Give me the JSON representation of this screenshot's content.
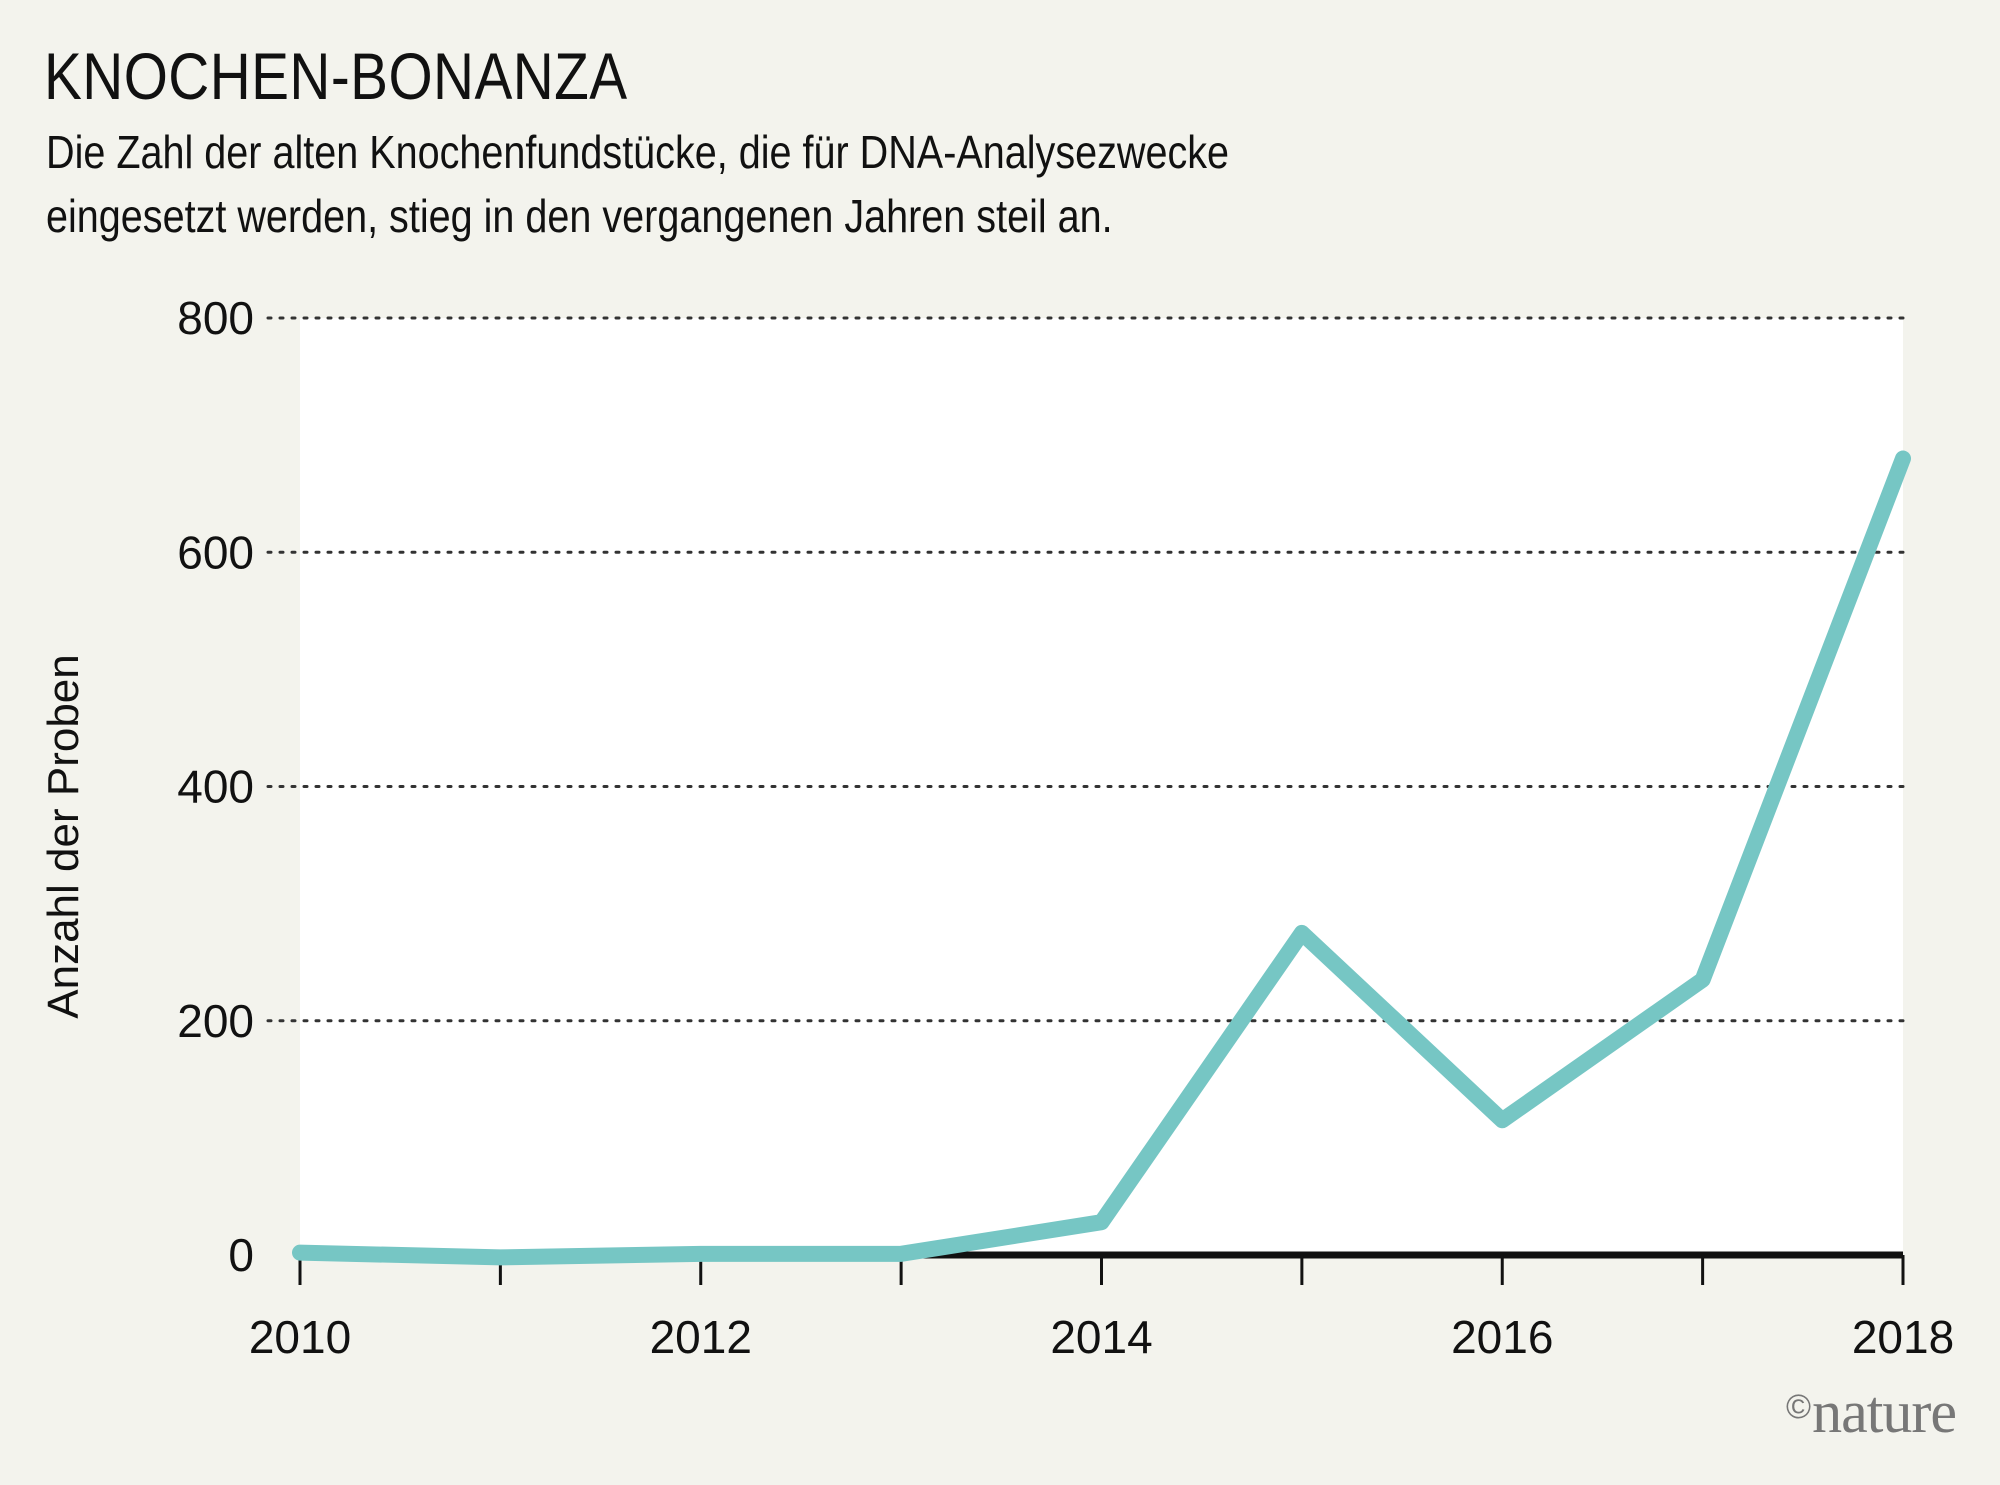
{
  "title": "KNOCHEN-BONANZA",
  "subtitle_lines": [
    "Die Zahl der alten Knochenfundstücke, die für DNA-Analysezwecke",
    "eingesetzt werden, stieg in den vergangenen Jahren steil an."
  ],
  "credit": {
    "symbol": "©",
    "text": "nature"
  },
  "colors": {
    "background": "#f3f3ed",
    "plot_area": "#ffffff",
    "line": "#76c6c4",
    "gridline": "#333333",
    "axis": "#111111"
  },
  "chart_data": {
    "type": "line",
    "title": "",
    "xlabel": "",
    "ylabel": "Anzahl der Proben",
    "x": [
      2010,
      2011,
      2012,
      2013,
      2014,
      2015,
      2016,
      2017,
      2018
    ],
    "series": [
      {
        "values": [
          2,
          -2,
          1,
          1,
          28,
          275,
          115,
          235,
          680
        ]
      }
    ],
    "xlim": [
      2010,
      2018
    ],
    "ylim": [
      0,
      800
    ],
    "x_ticks": [
      2010,
      2011,
      2012,
      2013,
      2014,
      2015,
      2016,
      2017,
      2018
    ],
    "x_tick_labels": [
      "2010",
      "2012",
      "2014",
      "2016",
      "2018"
    ],
    "y_ticks": [
      0,
      200,
      400,
      600,
      800
    ],
    "y_tick_labels": [
      "0",
      "200",
      "400",
      "600",
      "800"
    ],
    "grid": "horizontal dotted",
    "legend": "none"
  }
}
